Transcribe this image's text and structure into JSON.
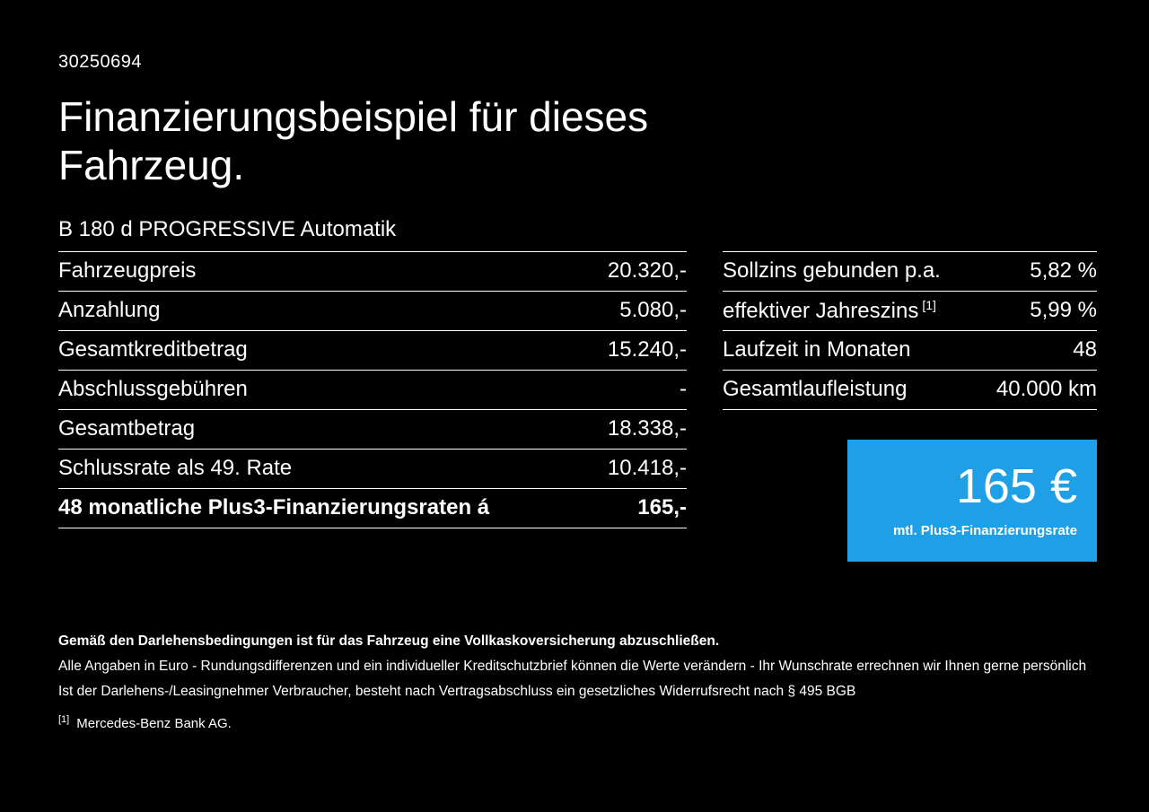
{
  "colors": {
    "background": "#000000",
    "text": "#ffffff",
    "accent_blue": "#1fa0e6"
  },
  "header": {
    "document_id": "30250694",
    "title": "Finanzierungsbeispiel für dieses Fahrzeug.",
    "vehicle_model": "B 180 d PROGRESSIVE Automatik"
  },
  "left_table": {
    "rows": [
      {
        "label": "Fahrzeugpreis",
        "value": "20.320,-"
      },
      {
        "label": "Anzahlung",
        "value": "5.080,-"
      },
      {
        "label": "Gesamtkreditbetrag",
        "value": "15.240,-"
      },
      {
        "label": "Abschlussgebühren",
        "value": "-"
      },
      {
        "label": "Gesamtbetrag",
        "value": "18.338,-"
      },
      {
        "label": "Schlussrate als 49. Rate",
        "value": "10.418,-"
      },
      {
        "label": "48 monatliche Plus3-Finanzierungsraten á",
        "value": "165,-"
      }
    ]
  },
  "right_table": {
    "rows": [
      {
        "label": "Sollzins gebunden p.a.",
        "sup": "",
        "value": "5,82 %"
      },
      {
        "label": "effektiver Jahreszins",
        "sup": "[1]",
        "value": "5,99 %"
      },
      {
        "label": "Laufzeit in Monaten",
        "sup": "",
        "value": "48"
      },
      {
        "label": "Gesamtlaufleistung",
        "sup": "",
        "value": "40.000 km"
      }
    ]
  },
  "rate_box": {
    "amount": "165 €",
    "caption": "mtl. Plus3-Finanzierungsrate"
  },
  "footer": {
    "line_bold": "Gemäß den Darlehensbedingungen ist für das Fahrzeug eine Vollkaskoversicherung abzuschließen.",
    "line_2": "Alle Angaben in Euro - Rundungsdifferenzen und ein individueller Kreditschutzbrief können die Werte verändern - Ihr Wunschrate errechnen wir Ihnen gerne persönlich",
    "line_3": "Ist der Darlehens-/Leasingnehmer Verbraucher, besteht nach Vertragsabschluss ein gesetzliches Widerrufsrecht nach § 495 BGB",
    "footnote_marker": "[1]",
    "footnote_text": "Mercedes-Benz Bank AG."
  }
}
